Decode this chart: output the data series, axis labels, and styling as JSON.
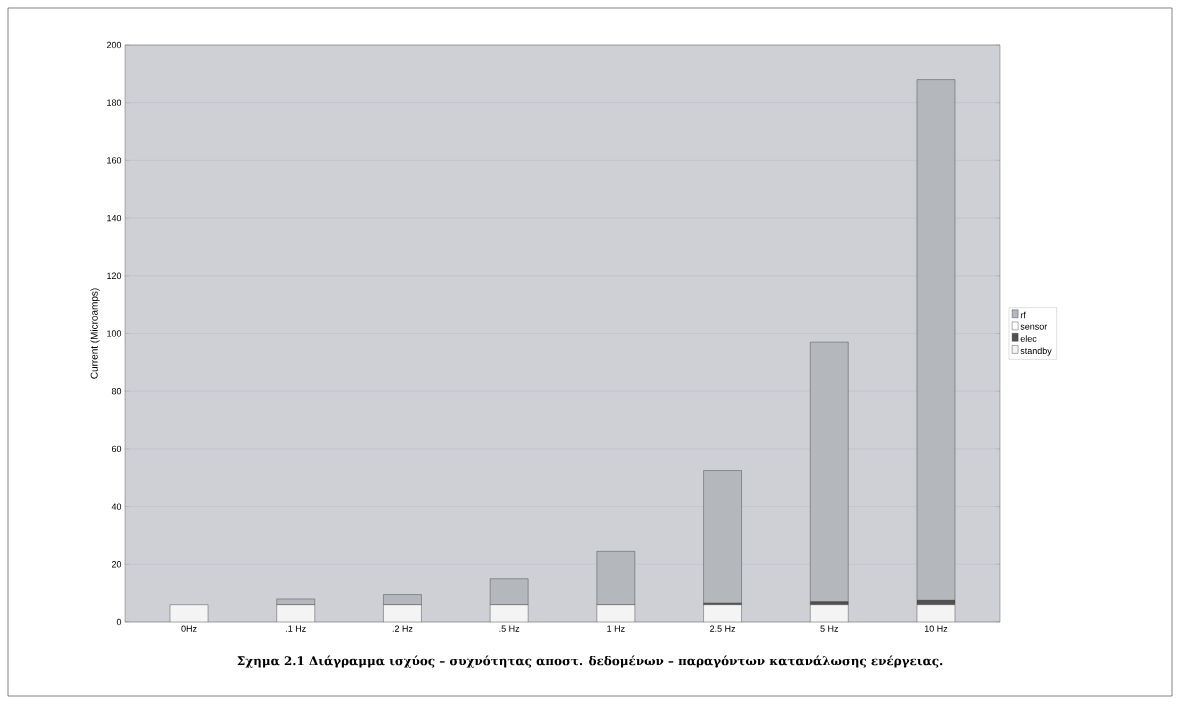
{
  "chart_data": {
    "type": "bar",
    "stacked": true,
    "categories": [
      "0Hz",
      ".1 Hz",
      ".2 Hz",
      ".5 Hz",
      "1 Hz",
      "2.5 Hz",
      "5 Hz",
      "10 Hz"
    ],
    "ylabel": "Current (Microamps)",
    "series": [
      {
        "name": "standby",
        "color": "#f4f4f4",
        "values": [
          6,
          6,
          6,
          6,
          6,
          6,
          6,
          6
        ]
      },
      {
        "name": "elec",
        "color": "#505050",
        "values": [
          0,
          0,
          0,
          0,
          0,
          0.5,
          1,
          1.5
        ]
      },
      {
        "name": "sensor",
        "color": "#ffffff",
        "values": [
          0,
          0,
          0,
          0,
          0,
          0,
          0,
          0
        ]
      },
      {
        "name": "rf",
        "color": "#b4b8bc",
        "values": [
          0,
          2,
          3.5,
          9,
          18.5,
          46,
          90,
          180.5
        ]
      }
    ],
    "ylim": [
      0,
      200
    ],
    "yticks": [
      0,
      20,
      40,
      60,
      80,
      100,
      120,
      140,
      160,
      180,
      200
    ],
    "grid": "y",
    "legend": "right",
    "annotations": [
      "Σχημα 2.1 Διάγραμμα ισχύος – συχνότητας αποστ. δεδομένων – παραγόντων κατανάλωσης ενέργειας."
    ]
  }
}
